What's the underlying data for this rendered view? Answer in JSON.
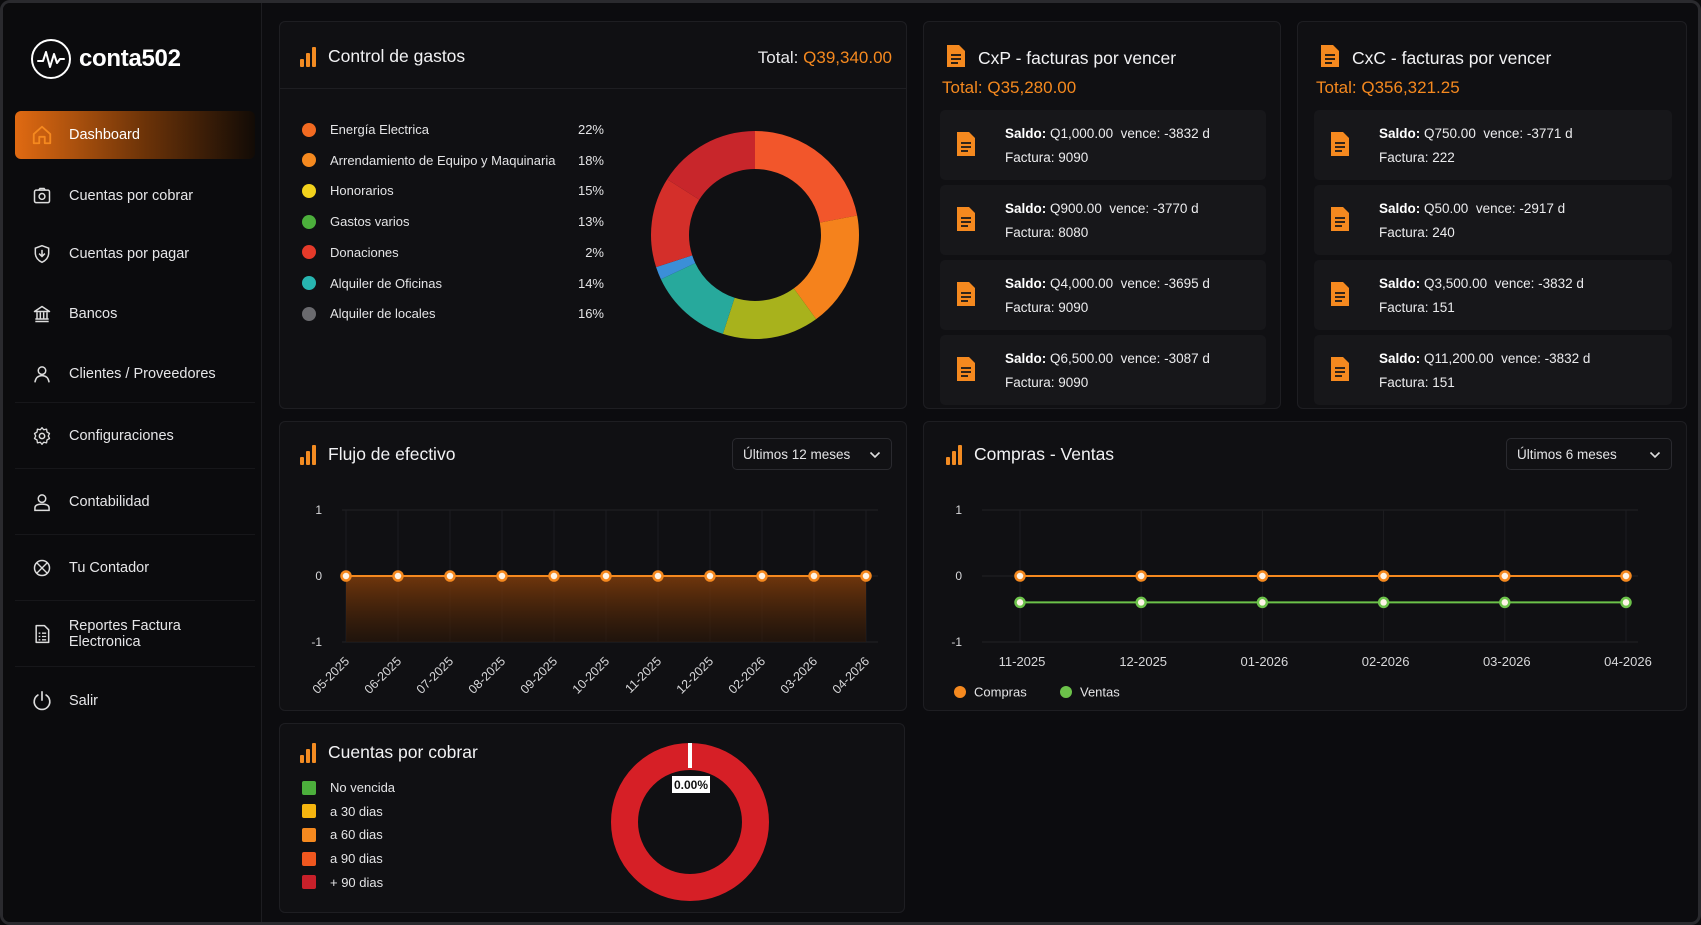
{
  "app": {
    "name": "conta502"
  },
  "sidebar": {
    "items": [
      {
        "label": "Dashboard",
        "icon": "home-icon",
        "active": true
      },
      {
        "label": "Cuentas por cobrar",
        "icon": "camera-icon"
      },
      {
        "label": "Cuentas por pagar",
        "icon": "shield-download-icon"
      },
      {
        "label": "Bancos",
        "icon": "bank-icon"
      },
      {
        "label": "Clientes / Proveedores",
        "icon": "user-icon"
      },
      {
        "label": "Configuraciones",
        "icon": "gear-icon"
      },
      {
        "label": "Contabilidad",
        "icon": "user-icon"
      },
      {
        "label": "Tu Contador",
        "icon": "globe-icon"
      },
      {
        "label": "Reportes Factura Electronica",
        "icon": "report-icon"
      },
      {
        "label": "Salir",
        "icon": "power-icon"
      }
    ]
  },
  "gastos": {
    "title": "Control de gastos",
    "total_label": "Total:",
    "total_value": "Q39,340.00",
    "items": [
      {
        "label": "Energía Electrica",
        "pct": "22%",
        "color": "#f26a21"
      },
      {
        "label": "Arrendamiento de Equipo y Maquinaria",
        "pct": "18%",
        "color": "#f5891f"
      },
      {
        "label": "Honorarios",
        "pct": "15%",
        "color": "#f2d21c"
      },
      {
        "label": "Gastos varios",
        "pct": "13%",
        "color": "#4caf3c"
      },
      {
        "label": "Donaciones",
        "pct": "2%",
        "color": "#e53a2a"
      },
      {
        "label": "Alquiler de Oficinas",
        "pct": "14%",
        "color": "#27b5b0"
      },
      {
        "label": "Alquiler de locales",
        "pct": "16%",
        "color": "#6a6a6e"
      }
    ]
  },
  "cxp": {
    "title": "CxP - facturas por vencer",
    "total": "Total: Q35,280.00",
    "rows": [
      {
        "saldo_label": "Saldo:",
        "saldo": "Q1,000.00",
        "vence": "vence: -3832 d",
        "factura": "Factura: 9090"
      },
      {
        "saldo_label": "Saldo:",
        "saldo": "Q900.00",
        "vence": "vence: -3770 d",
        "factura": "Factura: 8080"
      },
      {
        "saldo_label": "Saldo:",
        "saldo": "Q4,000.00",
        "vence": "vence: -3695 d",
        "factura": "Factura: 9090"
      },
      {
        "saldo_label": "Saldo:",
        "saldo": "Q6,500.00",
        "vence": "vence: -3087 d",
        "factura": "Factura: 9090"
      }
    ]
  },
  "cxc": {
    "title": "CxC - facturas por vencer",
    "total": "Total: Q356,321.25",
    "rows": [
      {
        "saldo_label": "Saldo:",
        "saldo": "Q750.00",
        "vence": "vence: -3771 d",
        "factura": "Factura: 222"
      },
      {
        "saldo_label": "Saldo:",
        "saldo": "Q50.00",
        "vence": "vence: -2917 d",
        "factura": "Factura: 240"
      },
      {
        "saldo_label": "Saldo:",
        "saldo": "Q3,500.00",
        "vence": "vence: -3832 d",
        "factura": "Factura: 151"
      },
      {
        "saldo_label": "Saldo:",
        "saldo": "Q11,200.00",
        "vence": "vence: -3832 d",
        "factura": "Factura: 151"
      }
    ]
  },
  "flujo": {
    "title": "Flujo de efectivo",
    "select": "Últimos 12 meses"
  },
  "compras": {
    "title": "Compras - Ventas",
    "select": "Últimos 6 meses"
  },
  "cobrar": {
    "title": "Cuentas por cobrar",
    "center_label": "0.00%",
    "legend": [
      {
        "label": "No vencida",
        "color": "#4caf3c"
      },
      {
        "label": "a 30 dias",
        "color": "#f5b50f"
      },
      {
        "label": "a 60 dias",
        "color": "#f5891f"
      },
      {
        "label": "a 90 dias",
        "color": "#f0571f"
      },
      {
        "label": "+ 90 dias",
        "color": "#c8202a"
      }
    ]
  },
  "chart_data": [
    {
      "type": "pie",
      "title": "Control de gastos",
      "categories": [
        "Energía Electrica",
        "Arrendamiento de Equipo y Maquinaria",
        "Honorarios",
        "Gastos varios",
        "Donaciones",
        "Alquiler de Oficinas",
        "Alquiler de locales"
      ],
      "values": [
        22,
        18,
        15,
        13,
        2,
        14,
        16
      ],
      "colors": [
        "#f2562b",
        "#f5821c",
        "#a8b21c",
        "#27a99c",
        "#3b8fd8",
        "#d42f2a",
        "#c8262b"
      ]
    },
    {
      "type": "area",
      "title": "Flujo de efectivo",
      "categories": [
        "05-2025",
        "06-2025",
        "07-2025",
        "08-2025",
        "09-2025",
        "10-2025",
        "11-2025",
        "12-2025",
        "02-2026",
        "03-2026",
        "04-2026"
      ],
      "series": [
        {
          "values": [
            0,
            0,
            0,
            0,
            0,
            0,
            0,
            0,
            0,
            0,
            0
          ],
          "color": "#f5891f"
        }
      ],
      "yticks": [
        "1",
        "0",
        "-1"
      ],
      "ylim": [
        -1,
        1
      ]
    },
    {
      "type": "line",
      "title": "Compras - Ventas",
      "categories": [
        "11-2025",
        "12-2025",
        "01-2026",
        "02-2026",
        "03-2026",
        "04-2026"
      ],
      "series": [
        {
          "name": "Compras",
          "values": [
            0,
            0,
            0,
            0,
            0,
            0
          ],
          "color": "#f5891f"
        },
        {
          "name": "Ventas",
          "values": [
            -0.4,
            -0.4,
            -0.4,
            -0.4,
            -0.4,
            -0.4
          ],
          "color": "#6cc24a"
        }
      ],
      "yticks": [
        "1",
        "0",
        "-1"
      ],
      "ylim": [
        -1,
        1
      ]
    },
    {
      "type": "pie",
      "title": "Cuentas por cobrar",
      "categories": [
        "No vencida",
        "a 30 dias",
        "a 60 dias",
        "a 90 dias",
        "+ 90 dias"
      ],
      "values": [
        0,
        0,
        0,
        0,
        100
      ],
      "colors": [
        "#4caf3c",
        "#f5b50f",
        "#f5891f",
        "#f0571f",
        "#d61f26"
      ]
    }
  ]
}
